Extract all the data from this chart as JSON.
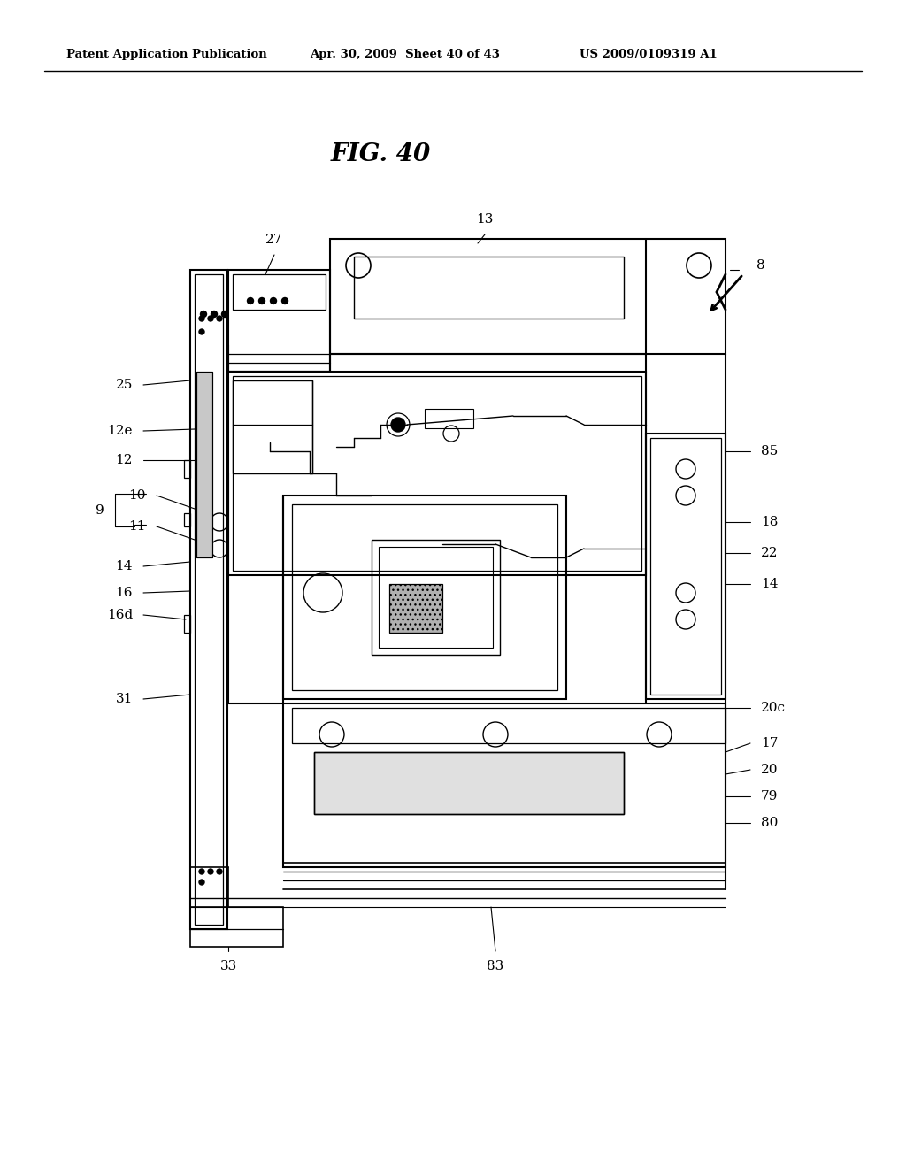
{
  "bg_color": "#ffffff",
  "header_text": "Patent Application Publication",
  "header_date": "Apr. 30, 2009  Sheet 40 of 43",
  "header_patent": "US 2009/0109319 A1",
  "fig_title": "FIG. 40"
}
